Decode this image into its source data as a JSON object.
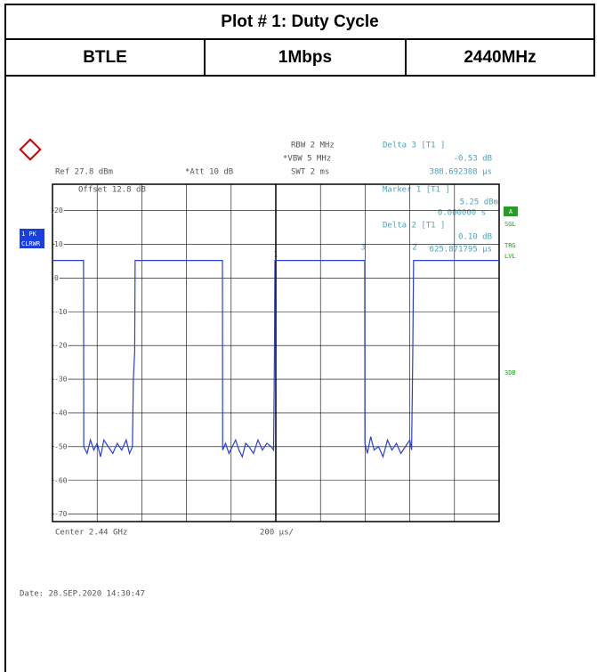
{
  "header": {
    "title": "Plot # 1: Duty Cycle",
    "row": [
      "BTLE",
      "1Mbps",
      "2440MHz"
    ]
  },
  "chart_data": {
    "type": "line",
    "settings": {
      "rbw": "RBW 2 MHz",
      "vbw": "*VBW 5 MHz",
      "swt": "SWT 2 ms",
      "ref": "Ref  27.8 dBm",
      "att": "*Att  10 dB",
      "offset": "Offset  12.8 dB"
    },
    "markers": [
      "Delta 3 [T1 ]",
      "-0.53 dB",
      "388.692308 µs",
      "Marker 1 [T1 ]",
      "5.25 dBm",
      "0.000000 s",
      "Delta 2 [T1 ]",
      "0.10 dB",
      "625.871795 µs"
    ],
    "marker_ids": [
      "1",
      "2",
      "3"
    ],
    "side_labels": [
      "1 PK",
      "CLRWR",
      "A",
      "SGL",
      "TRG",
      "LVL",
      "3DB"
    ],
    "center": "Center 2.44 GHz",
    "scale": "200 µs/",
    "xlim": [
      0,
      2000
    ],
    "ylim": [
      -72.2,
      27.8
    ],
    "yticks": [
      20,
      10,
      0,
      -10,
      -20,
      -30,
      -40,
      -50,
      -60,
      -70
    ],
    "x": [
      0,
      139,
      140,
      155,
      170,
      185,
      200,
      215,
      230,
      250,
      270,
      290,
      310,
      330,
      345,
      358,
      362,
      368,
      370,
      761,
      762,
      775,
      790,
      805,
      820,
      835,
      850,
      865,
      880,
      900,
      920,
      940,
      960,
      980,
      990,
      994,
      996,
      1398,
      1399,
      1410,
      1425,
      1440,
      1460,
      1480,
      1500,
      1520,
      1540,
      1560,
      1580,
      1600,
      1608,
      1613,
      1617,
      2000
    ],
    "series": [
      {
        "color": "#2a3fd6",
        "values": [
          5.2,
          5.2,
          -50,
          -52,
          -48,
          -51,
          -49,
          -53,
          -48,
          -50,
          -52,
          -49,
          -51,
          -48,
          -52,
          -50,
          -30,
          -22,
          5.2,
          5.2,
          -51,
          -49,
          -52,
          -50,
          -48,
          -51,
          -53,
          -49,
          -50,
          -52,
          -48,
          -51,
          -49,
          -50,
          -51,
          -22,
          5.2,
          5.2,
          -49,
          -52,
          -47,
          -51,
          -50,
          -53,
          -48,
          -51,
          -49,
          -52,
          -50,
          -48,
          -51,
          -24,
          5.2,
          5.2
        ]
      }
    ]
  },
  "date": "Date: 28.SEP.2020  14:30:47"
}
